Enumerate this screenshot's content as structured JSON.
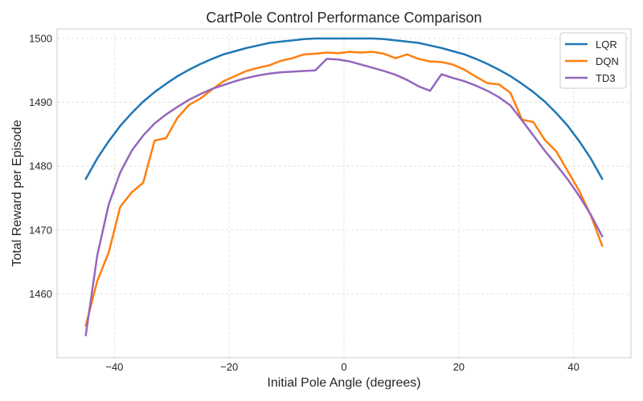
{
  "chart_data": {
    "type": "line",
    "title": "CartPole Control Performance Comparison",
    "xlabel": "Initial Pole Angle (degrees)",
    "ylabel": "Total Reward per Episode",
    "xlim": [
      -50,
      50
    ],
    "ylim": [
      1450,
      1501.5
    ],
    "grid": true,
    "legend_position": "top-right",
    "x_ticks": [
      -40,
      -20,
      0,
      20,
      40
    ],
    "x_tick_labels": [
      "−40",
      "−20",
      "0",
      "20",
      "40"
    ],
    "y_ticks": [
      1460,
      1470,
      1480,
      1490,
      1500
    ],
    "y_tick_labels": [
      "1460",
      "1470",
      "1480",
      "1490",
      "1500"
    ],
    "x": [
      -45,
      -43,
      -41,
      -39,
      -37,
      -35,
      -33,
      -31,
      -29,
      -27,
      -25,
      -23,
      -21,
      -19,
      -17,
      -15,
      -13,
      -11,
      -9,
      -7,
      -5,
      -3,
      -1,
      1,
      3,
      5,
      7,
      9,
      11,
      13,
      15,
      17,
      19,
      21,
      23,
      25,
      27,
      29,
      31,
      33,
      35,
      37,
      39,
      41,
      43,
      45
    ],
    "series": [
      {
        "name": "LQR",
        "color": "#1f77b4",
        "values": [
          1478.0,
          1481.2,
          1483.9,
          1486.3,
          1488.3,
          1490.1,
          1491.6,
          1492.9,
          1494.1,
          1495.1,
          1496.0,
          1496.8,
          1497.5,
          1498.0,
          1498.5,
          1498.9,
          1499.3,
          1499.5,
          1499.7,
          1499.9,
          1500.0,
          1500.0,
          1500.0,
          1500.0,
          1500.0,
          1500.0,
          1499.9,
          1499.7,
          1499.5,
          1499.3,
          1498.9,
          1498.5,
          1498.0,
          1497.5,
          1496.8,
          1496.0,
          1495.1,
          1494.1,
          1492.9,
          1491.6,
          1490.1,
          1488.3,
          1486.3,
          1483.9,
          1481.2,
          1478.0
        ]
      },
      {
        "name": "DQN",
        "color": "#ff7f0e",
        "values": [
          1455.0,
          1462.0,
          1466.5,
          1473.6,
          1475.9,
          1477.4,
          1484.0,
          1484.4,
          1487.6,
          1489.6,
          1490.6,
          1492.0,
          1493.3,
          1494.1,
          1494.9,
          1495.4,
          1495.8,
          1496.5,
          1496.9,
          1497.5,
          1497.6,
          1497.8,
          1497.7,
          1497.9,
          1497.8,
          1497.9,
          1497.6,
          1496.9,
          1497.5,
          1496.8,
          1496.4,
          1496.3,
          1495.9,
          1495.1,
          1494.0,
          1493.0,
          1492.8,
          1491.5,
          1487.3,
          1486.9,
          1484.1,
          1482.3,
          1479.2,
          1476.1,
          1472.3,
          1467.5
        ]
      },
      {
        "name": "TD3",
        "color": "#9467bd",
        "values": [
          1453.5,
          1466.0,
          1474.0,
          1479.0,
          1482.4,
          1484.8,
          1486.7,
          1488.1,
          1489.3,
          1490.4,
          1491.3,
          1492.1,
          1492.7,
          1493.3,
          1493.8,
          1494.2,
          1494.5,
          1494.7,
          1494.8,
          1494.9,
          1495.0,
          1496.8,
          1496.7,
          1496.4,
          1495.9,
          1495.4,
          1494.9,
          1494.3,
          1493.5,
          1492.5,
          1491.8,
          1494.4,
          1493.8,
          1493.3,
          1492.6,
          1491.8,
          1490.8,
          1489.5,
          1487.2,
          1484.8,
          1482.4,
          1480.2,
          1477.9,
          1475.3,
          1472.4,
          1469.0
        ]
      }
    ]
  }
}
